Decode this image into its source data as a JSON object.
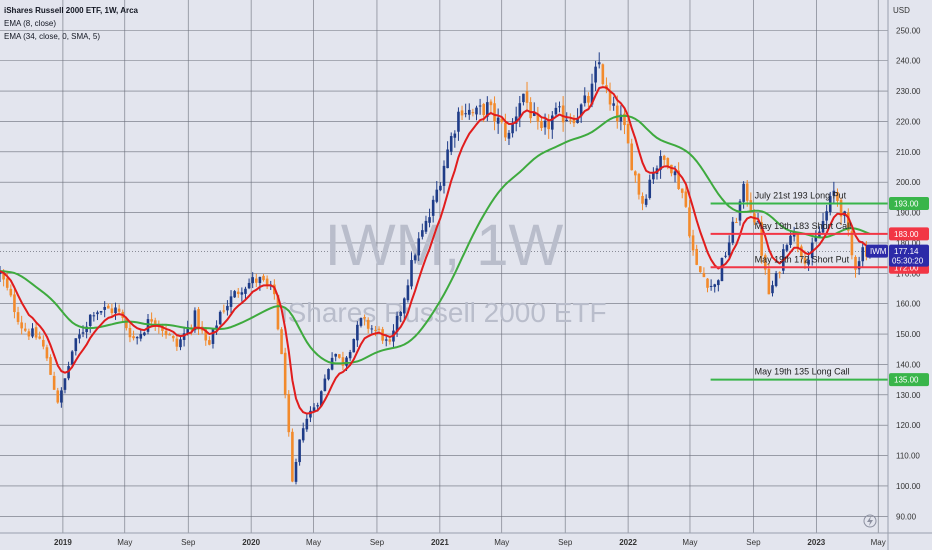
{
  "legend": {
    "title": "iShares Russell 2000 ETF, 1W, Arca",
    "ema1": "EMA (8, close)",
    "ema2": "EMA (34, close, 0, SMA, 5)"
  },
  "watermark": {
    "symbol": "IWM, 1W",
    "name": "iShares Russell 2000 ETF"
  },
  "currency": "USD",
  "colors": {
    "background": "#e3e5ee",
    "grid": "#6b6f7b",
    "up": "#1f3c88",
    "down": "#f28a2c",
    "ema_fast": "#e11d1d",
    "ema_slow": "#3eaa3e",
    "level_green": "#39b54a",
    "level_red": "#f23645",
    "badge_price": "#2c2aa8"
  },
  "price_badge": {
    "symbol": "IWM",
    "value": "177.14",
    "countdown": "05:30:20"
  },
  "chart_data": {
    "type": "candlestick",
    "title": "iShares Russell 2000 ETF, 1W, Arca",
    "x_range": [
      "2018-09-01",
      "2023-05-20"
    ],
    "ylim": [
      84.5,
      260
    ],
    "y_axis_side": "right",
    "grid": true,
    "y_ticks": [
      90,
      100,
      110,
      120,
      130,
      140,
      150,
      160,
      170,
      180,
      190,
      200,
      210,
      220,
      230,
      240,
      250
    ],
    "x_ticks": [
      {
        "label": "2019",
        "date": "2019-01-01",
        "year": true
      },
      {
        "label": "May",
        "date": "2019-05-01"
      },
      {
        "label": "Sep",
        "date": "2019-09-01"
      },
      {
        "label": "2020",
        "date": "2020-01-01",
        "year": true
      },
      {
        "label": "May",
        "date": "2020-05-01"
      },
      {
        "label": "Sep",
        "date": "2020-09-01"
      },
      {
        "label": "2021",
        "date": "2021-01-01",
        "year": true
      },
      {
        "label": "May",
        "date": "2021-05-01"
      },
      {
        "label": "Sep",
        "date": "2021-09-01"
      },
      {
        "label": "2022",
        "date": "2022-01-01",
        "year": true
      },
      {
        "label": "May",
        "date": "2022-05-01"
      },
      {
        "label": "Sep",
        "date": "2022-09-01"
      },
      {
        "label": "2023",
        "date": "2023-01-01",
        "year": true
      },
      {
        "label": "May",
        "date": "2023-05-01"
      }
    ],
    "price_path": [
      [
        "2018-09-01",
        170
      ],
      [
        "2018-10-15",
        152
      ],
      [
        "2018-11-20",
        148
      ],
      [
        "2018-12-24",
        127
      ],
      [
        "2019-01-20",
        145
      ],
      [
        "2019-03-01",
        158
      ],
      [
        "2019-04-15",
        158
      ],
      [
        "2019-05-20",
        148
      ],
      [
        "2019-06-25",
        156
      ],
      [
        "2019-08-10",
        146
      ],
      [
        "2019-09-15",
        156
      ],
      [
        "2019-10-10",
        145
      ],
      [
        "2019-11-01",
        157
      ],
      [
        "2019-12-15",
        166
      ],
      [
        "2020-01-15",
        168
      ],
      [
        "2020-02-15",
        163
      ],
      [
        "2020-03-08",
        130
      ],
      [
        "2020-03-21",
        100
      ],
      [
        "2020-04-10",
        120
      ],
      [
        "2020-05-15",
        130
      ],
      [
        "2020-06-08",
        145
      ],
      [
        "2020-06-25",
        140
      ],
      [
        "2020-08-01",
        154
      ],
      [
        "2020-09-10",
        150
      ],
      [
        "2020-09-25",
        145
      ],
      [
        "2020-10-20",
        160
      ],
      [
        "2020-11-15",
        178
      ],
      [
        "2020-12-15",
        190
      ],
      [
        "2021-01-15",
        210
      ],
      [
        "2021-02-10",
        225
      ],
      [
        "2021-03-10",
        222
      ],
      [
        "2021-04-01",
        225
      ],
      [
        "2021-05-15",
        215
      ],
      [
        "2021-06-10",
        230
      ],
      [
        "2021-07-15",
        215
      ],
      [
        "2021-08-10",
        222
      ],
      [
        "2021-09-20",
        222
      ],
      [
        "2021-10-20",
        228
      ],
      [
        "2021-11-05",
        240
      ],
      [
        "2021-11-25",
        225
      ],
      [
        "2021-12-20",
        220
      ],
      [
        "2022-01-15",
        202
      ],
      [
        "2022-01-28",
        193
      ],
      [
        "2022-02-20",
        205
      ],
      [
        "2022-03-20",
        208
      ],
      [
        "2022-04-20",
        195
      ],
      [
        "2022-05-12",
        172
      ],
      [
        "2022-06-17",
        165
      ],
      [
        "2022-07-15",
        180
      ],
      [
        "2022-08-15",
        198
      ],
      [
        "2022-09-10",
        185
      ],
      [
        "2022-09-30",
        163
      ],
      [
        "2022-10-15",
        168
      ],
      [
        "2022-11-10",
        185
      ],
      [
        "2022-12-15",
        174
      ],
      [
        "2023-01-10",
        185
      ],
      [
        "2023-02-05",
        197
      ],
      [
        "2023-02-25",
        188
      ],
      [
        "2023-03-15",
        172
      ],
      [
        "2023-04-01",
        178
      ],
      [
        "2023-04-20",
        177.14
      ]
    ],
    "series": [
      {
        "name": "EMA (8, close)",
        "color": "#e11d1d"
      },
      {
        "name": "EMA (34, close, 0, SMA, 5)",
        "color": "#3eaa3e"
      }
    ],
    "levels": [
      {
        "value": 193,
        "label": "193.00",
        "color": "#39b54a",
        "annotation": "July 21st 193 Long Put",
        "from": "2022-06-10"
      },
      {
        "value": 183,
        "label": "183.00",
        "color": "#f23645",
        "annotation": "May 19th 183 Short Call",
        "from": "2022-06-10"
      },
      {
        "value": 172,
        "label": "172.00",
        "color": "#f23645",
        "annotation": "May 19th 172 Short Put",
        "from": "2022-06-10"
      },
      {
        "value": 135,
        "label": "135.00",
        "color": "#39b54a",
        "annotation": "May 19th 135 Long Call",
        "from": "2022-06-10"
      }
    ],
    "last_price": 177.14
  }
}
